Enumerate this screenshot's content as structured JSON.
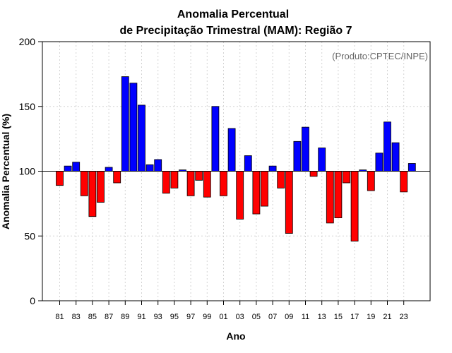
{
  "chart_data": {
    "type": "bar",
    "title_line1": "Anomalia Percentual",
    "title_line2": "de Precipitação Trimestral (MAM): Região 7",
    "xlabel": "Ano",
    "ylabel": "Anomalia Percentual (%)",
    "annotation": "(Produto:CPTEC/INPE)",
    "ylim": [
      0,
      200
    ],
    "yticks": [
      0,
      50,
      100,
      150,
      200
    ],
    "baseline": 100,
    "grid": true,
    "colors": {
      "above": "#0000ff",
      "below": "#ff0000",
      "edge": "#000000",
      "grid": "#d3d3d3"
    },
    "categories": [
      "1981",
      "1982",
      "1983",
      "1984",
      "1985",
      "1986",
      "1987",
      "1988",
      "1989",
      "1990",
      "1991",
      "1992",
      "1993",
      "1994",
      "1995",
      "1996",
      "1997",
      "1998",
      "1999",
      "2000",
      "2001",
      "2002",
      "2003",
      "2004",
      "2005",
      "2006",
      "2007",
      "2008",
      "2009",
      "2010",
      "2011",
      "2012",
      "2013",
      "2014",
      "2015",
      "2016",
      "2017",
      "2018",
      "2019",
      "2020",
      "2021",
      "2022",
      "2023",
      "2024"
    ],
    "values": [
      89,
      104,
      107,
      81,
      65,
      76,
      103,
      91,
      173,
      168,
      151,
      105,
      109,
      83,
      87,
      101,
      81,
      93,
      80,
      150,
      81,
      133,
      63,
      112,
      67,
      73,
      104,
      87,
      52,
      123,
      134,
      96,
      118,
      60,
      64,
      91,
      46,
      101,
      85,
      114,
      138,
      122,
      84,
      106
    ],
    "xtick_labels": [
      "81",
      "83",
      "85",
      "87",
      "89",
      "91",
      "93",
      "95",
      "97",
      "99",
      "01",
      "03",
      "05",
      "07",
      "09",
      "11",
      "13",
      "15",
      "17",
      "19",
      "21",
      "23"
    ]
  }
}
